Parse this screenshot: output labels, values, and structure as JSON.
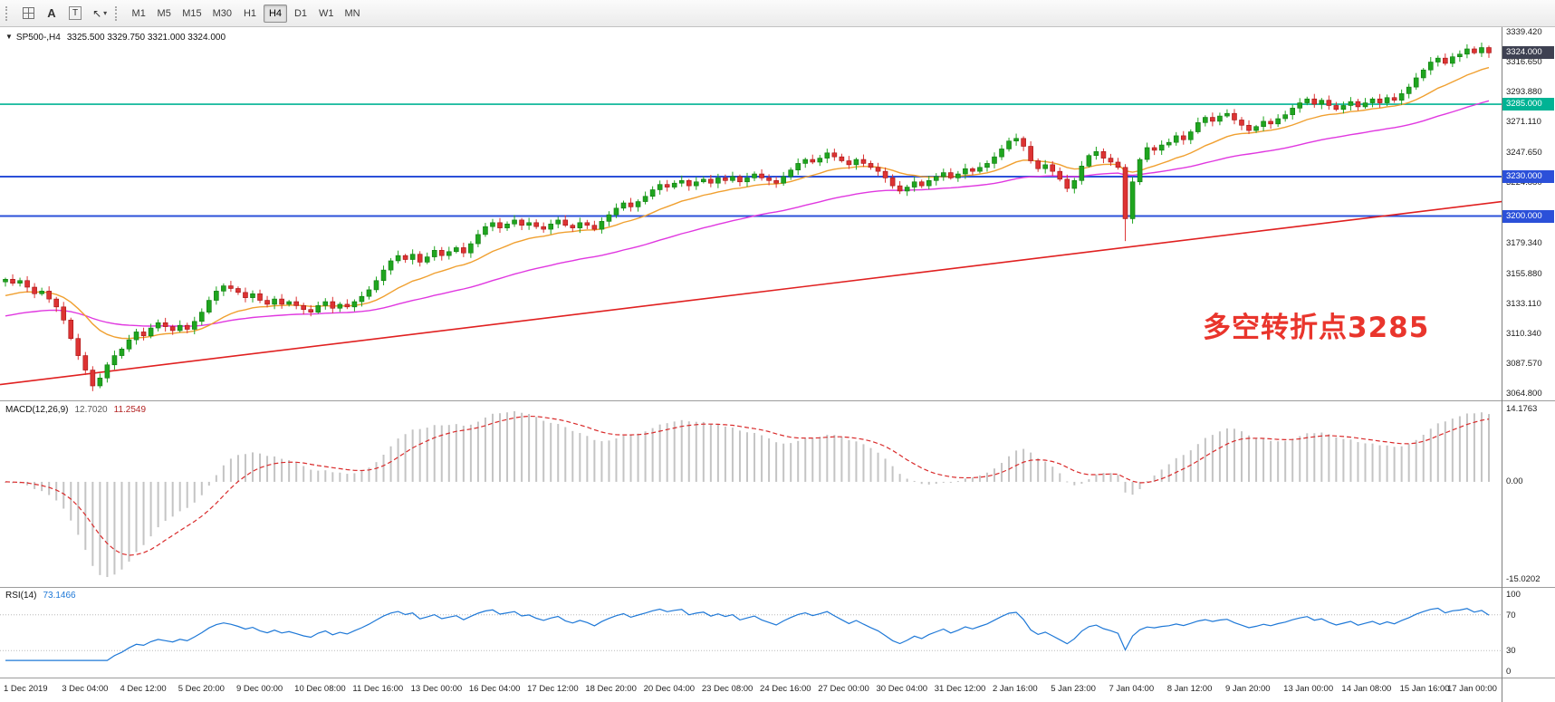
{
  "toolbar": {
    "a_label": "A",
    "t_label": "T",
    "cursor_icon": "↖",
    "dropdown_icon": "▾",
    "timeframes": [
      "M1",
      "M5",
      "M15",
      "M30",
      "H1",
      "H4",
      "D1",
      "W1",
      "MN"
    ],
    "active_timeframe": "H4"
  },
  "price_panel": {
    "collapse_icon": "▼",
    "title": "SP500-,H4",
    "ohlc": "3325.500 3329.750 3321.000 3324.000",
    "axis_labels": [
      "3339.420",
      "3316.650",
      "3293.880",
      "3271.110",
      "3247.650",
      "3224.880",
      "3179.340",
      "3155.880",
      "3133.110",
      "3110.340",
      "3087.570",
      "3064.800"
    ],
    "levels": [
      {
        "price": 3285.0,
        "label": "3285.000",
        "color": "#00b394",
        "width": 1.6
      },
      {
        "price": 3230.0,
        "label": "3230.000",
        "color": "#2b50d9",
        "width": 2
      },
      {
        "price": 3200.0,
        "label": "3200.000",
        "color": "#2b50d9",
        "width": 2
      }
    ],
    "current_price": {
      "value": 3324.0,
      "label": "3324.000",
      "color": "#3e4152"
    },
    "annotation": {
      "text": "多空转折点3285",
      "color": "#e9352c"
    }
  },
  "macd_panel": {
    "title": "MACD(12,26,9)",
    "main_value": "12.7020",
    "signal_value": "11.2549",
    "axis_labels": {
      "max": "14.1763",
      "zero": "0.00",
      "min": "-15.0202"
    },
    "histogram_color": "#c4c4c4",
    "signal_color": "#d92b2b"
  },
  "rsi_panel": {
    "title": "RSI(14)",
    "value": "73.1466",
    "axis_labels": [
      "100",
      "70",
      "30",
      "0"
    ],
    "levels": [
      70,
      30
    ],
    "line_color": "#1e78d7"
  },
  "time_axis": {
    "labels": [
      "1 Dec 2019",
      "3 Dec 04:00",
      "4 Dec 12:00",
      "5 Dec 20:00",
      "9 Dec 00:00",
      "10 Dec 08:00",
      "11 Dec 16:00",
      "13 Dec 00:00",
      "16 Dec 04:00",
      "17 Dec 12:00",
      "18 Dec 20:00",
      "20 Dec 04:00",
      "23 Dec 08:00",
      "24 Dec 16:00",
      "27 Dec 00:00",
      "30 Dec 04:00",
      "31 Dec 12:00",
      "2 Jan 16:00",
      "5 Jan 23:00",
      "7 Jan 04:00",
      "8 Jan 12:00",
      "9 Jan 20:00",
      "13 Jan 00:00",
      "14 Jan 08:00",
      "15 Jan 16:00",
      "17 Jan 00:00"
    ]
  },
  "chart_data": {
    "type": "candlestick",
    "symbol": "SP500-",
    "timeframe": "H4",
    "title": "SP500-,H4 3325.500 3329.750 3321.000 3324.000",
    "ohlc_current": {
      "open": 3325.5,
      "high": 3329.75,
      "low": 3321.0,
      "close": 3324.0
    },
    "ylim": [
      3060.0,
      3343.5
    ],
    "first_open": 3150,
    "bars_per_label": 8,
    "closes": [
      3152,
      3149,
      3151,
      3146,
      3141,
      3143,
      3137,
      3131,
      3121,
      3107,
      3094,
      3083,
      3071,
      3077,
      3087,
      3094,
      3099,
      3106,
      3112,
      3109,
      3115,
      3119,
      3116,
      3113,
      3117,
      3114,
      3120,
      3127,
      3136,
      3143,
      3147,
      3145,
      3142,
      3138,
      3141,
      3136,
      3133,
      3137,
      3133,
      3135,
      3132,
      3129,
      3127,
      3132,
      3135,
      3130,
      3133,
      3131,
      3135,
      3139,
      3144,
      3151,
      3159,
      3166,
      3170,
      3167,
      3171,
      3165,
      3169,
      3174,
      3170,
      3173,
      3176,
      3172,
      3179,
      3186,
      3192,
      3195,
      3191,
      3194,
      3197,
      3193,
      3195,
      3192,
      3190,
      3194,
      3197,
      3193,
      3191,
      3195,
      3193,
      3190,
      3196,
      3201,
      3206,
      3210,
      3207,
      3211,
      3215,
      3220,
      3224,
      3222,
      3225,
      3227,
      3223,
      3226,
      3228,
      3225,
      3229,
      3227,
      3230,
      3226,
      3229,
      3232,
      3229,
      3227,
      3225,
      3230,
      3235,
      3240,
      3243,
      3241,
      3244,
      3248,
      3245,
      3242,
      3239,
      3243,
      3240,
      3237,
      3234,
      3229,
      3223,
      3219,
      3222,
      3226,
      3223,
      3227,
      3230,
      3233,
      3229,
      3232,
      3236,
      3234,
      3237,
      3240,
      3245,
      3251,
      3257,
      3259,
      3253,
      3242,
      3236,
      3239,
      3234,
      3228,
      3221,
      3227,
      3238,
      3246,
      3249,
      3244,
      3241,
      3237,
      3198,
      3226,
      3243,
      3252,
      3250,
      3254,
      3256,
      3261,
      3258,
      3264,
      3271,
      3275,
      3272,
      3276,
      3278,
      3273,
      3269,
      3265,
      3268,
      3272,
      3270,
      3274,
      3277,
      3282,
      3286,
      3289,
      3285,
      3288,
      3284,
      3281,
      3284,
      3287,
      3283,
      3286,
      3289,
      3286,
      3290,
      3288,
      3293,
      3298,
      3305,
      3311,
      3317,
      3320,
      3316,
      3321,
      3323,
      3327,
      3324,
      3328,
      3324
    ],
    "low_overrides": {
      "12": 3067,
      "154": 3181
    },
    "up_color": "#1fa51f",
    "down_color": "#dd3333",
    "ma_orange": {
      "period": 16,
      "seed": 3138,
      "color": "#f0a030"
    },
    "ma_magenta": {
      "period": 50,
      "seed": 3123,
      "color": "#e038e0"
    },
    "ma_red": {
      "start": 3072,
      "end": 3211,
      "color": "#e02020"
    },
    "indicators": {
      "macd": [
        12,
        26,
        9
      ],
      "rsi": 14
    }
  }
}
